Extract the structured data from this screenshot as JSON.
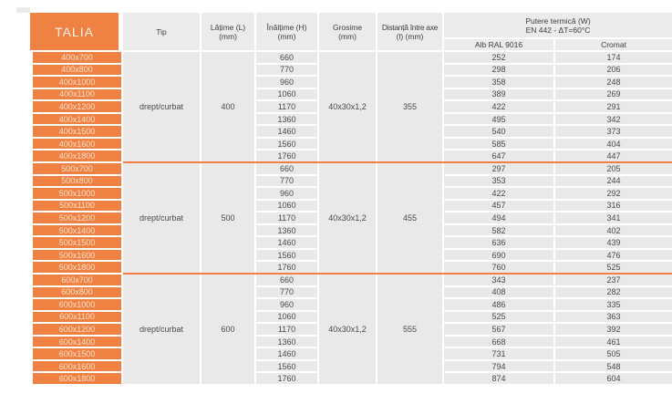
{
  "colors": {
    "accent_orange": "#EF8142",
    "header_gray": "#EBEBEB",
    "cell_gray": "#E9E9E9",
    "text_dark": "#4A4A4A",
    "label_text": "#FBE3CC"
  },
  "table": {
    "title": "TALIA",
    "headers": {
      "tip": "Tip",
      "latime_line1": "Lățime (L)",
      "latime_line2": "(mm)",
      "inaltime_line1": "Înălțime (H)",
      "inaltime_line2": "(mm)",
      "grosime_line1": "Grosime",
      "grosime_line2": "(mm)",
      "distanta_line1": "Distanță între axe",
      "distanta_line2": "(l) (mm)",
      "putere_line1": "Putere termică (W)",
      "putere_line2": "EN 442 - ΔT=60°C",
      "alb": "Alb RAL 9016",
      "cromat": "Cromat"
    },
    "groups": [
      {
        "tip": "drept/curbat",
        "latime": "400",
        "grosime": "40x30x1,2",
        "distanta": "355",
        "rows": [
          {
            "size": "400x700",
            "inaltime": "660",
            "alb": "252",
            "cromat": "174"
          },
          {
            "size": "400x800",
            "inaltime": "770",
            "alb": "298",
            "cromat": "206"
          },
          {
            "size": "400x1000",
            "inaltime": "960",
            "alb": "358",
            "cromat": "248"
          },
          {
            "size": "400x1100",
            "inaltime": "1060",
            "alb": "389",
            "cromat": "269"
          },
          {
            "size": "400x1200",
            "inaltime": "1170",
            "alb": "422",
            "cromat": "291"
          },
          {
            "size": "400x1400",
            "inaltime": "1360",
            "alb": "495",
            "cromat": "342"
          },
          {
            "size": "400x1500",
            "inaltime": "1460",
            "alb": "540",
            "cromat": "373"
          },
          {
            "size": "400x1600",
            "inaltime": "1560",
            "alb": "585",
            "cromat": "404"
          },
          {
            "size": "400x1800",
            "inaltime": "1760",
            "alb": "647",
            "cromat": "447"
          }
        ]
      },
      {
        "tip": "drept/curbat",
        "latime": "500",
        "grosime": "40x30x1,2",
        "distanta": "455",
        "rows": [
          {
            "size": "500x700",
            "inaltime": "660",
            "alb": "297",
            "cromat": "205"
          },
          {
            "size": "500x800",
            "inaltime": "770",
            "alb": "353",
            "cromat": "244"
          },
          {
            "size": "500x1000",
            "inaltime": "960",
            "alb": "422",
            "cromat": "292"
          },
          {
            "size": "500x1100",
            "inaltime": "1060",
            "alb": "457",
            "cromat": "316"
          },
          {
            "size": "500x1200",
            "inaltime": "1170",
            "alb": "494",
            "cromat": "341"
          },
          {
            "size": "500x1400",
            "inaltime": "1360",
            "alb": "582",
            "cromat": "402"
          },
          {
            "size": "500x1500",
            "inaltime": "1460",
            "alb": "636",
            "cromat": "439"
          },
          {
            "size": "500x1600",
            "inaltime": "1560",
            "alb": "690",
            "cromat": "476"
          },
          {
            "size": "500x1800",
            "inaltime": "1760",
            "alb": "760",
            "cromat": "525"
          }
        ]
      },
      {
        "tip": "drept/curbat",
        "latime": "600",
        "grosime": "40x30x1,2",
        "distanta": "555",
        "rows": [
          {
            "size": "600x700",
            "inaltime": "660",
            "alb": "343",
            "cromat": "237"
          },
          {
            "size": "600x800",
            "inaltime": "770",
            "alb": "408",
            "cromat": "282"
          },
          {
            "size": "600x1000",
            "inaltime": "960",
            "alb": "486",
            "cromat": "335"
          },
          {
            "size": "600x1100",
            "inaltime": "1060",
            "alb": "525",
            "cromat": "363"
          },
          {
            "size": "600x1200",
            "inaltime": "1170",
            "alb": "567",
            "cromat": "392"
          },
          {
            "size": "600x1400",
            "inaltime": "1360",
            "alb": "668",
            "cromat": "461"
          },
          {
            "size": "600x1500",
            "inaltime": "1460",
            "alb": "731",
            "cromat": "505"
          },
          {
            "size": "600x1600",
            "inaltime": "1560",
            "alb": "794",
            "cromat": "548"
          },
          {
            "size": "600x1800",
            "inaltime": "1760",
            "alb": "874",
            "cromat": "604"
          }
        ]
      }
    ]
  }
}
